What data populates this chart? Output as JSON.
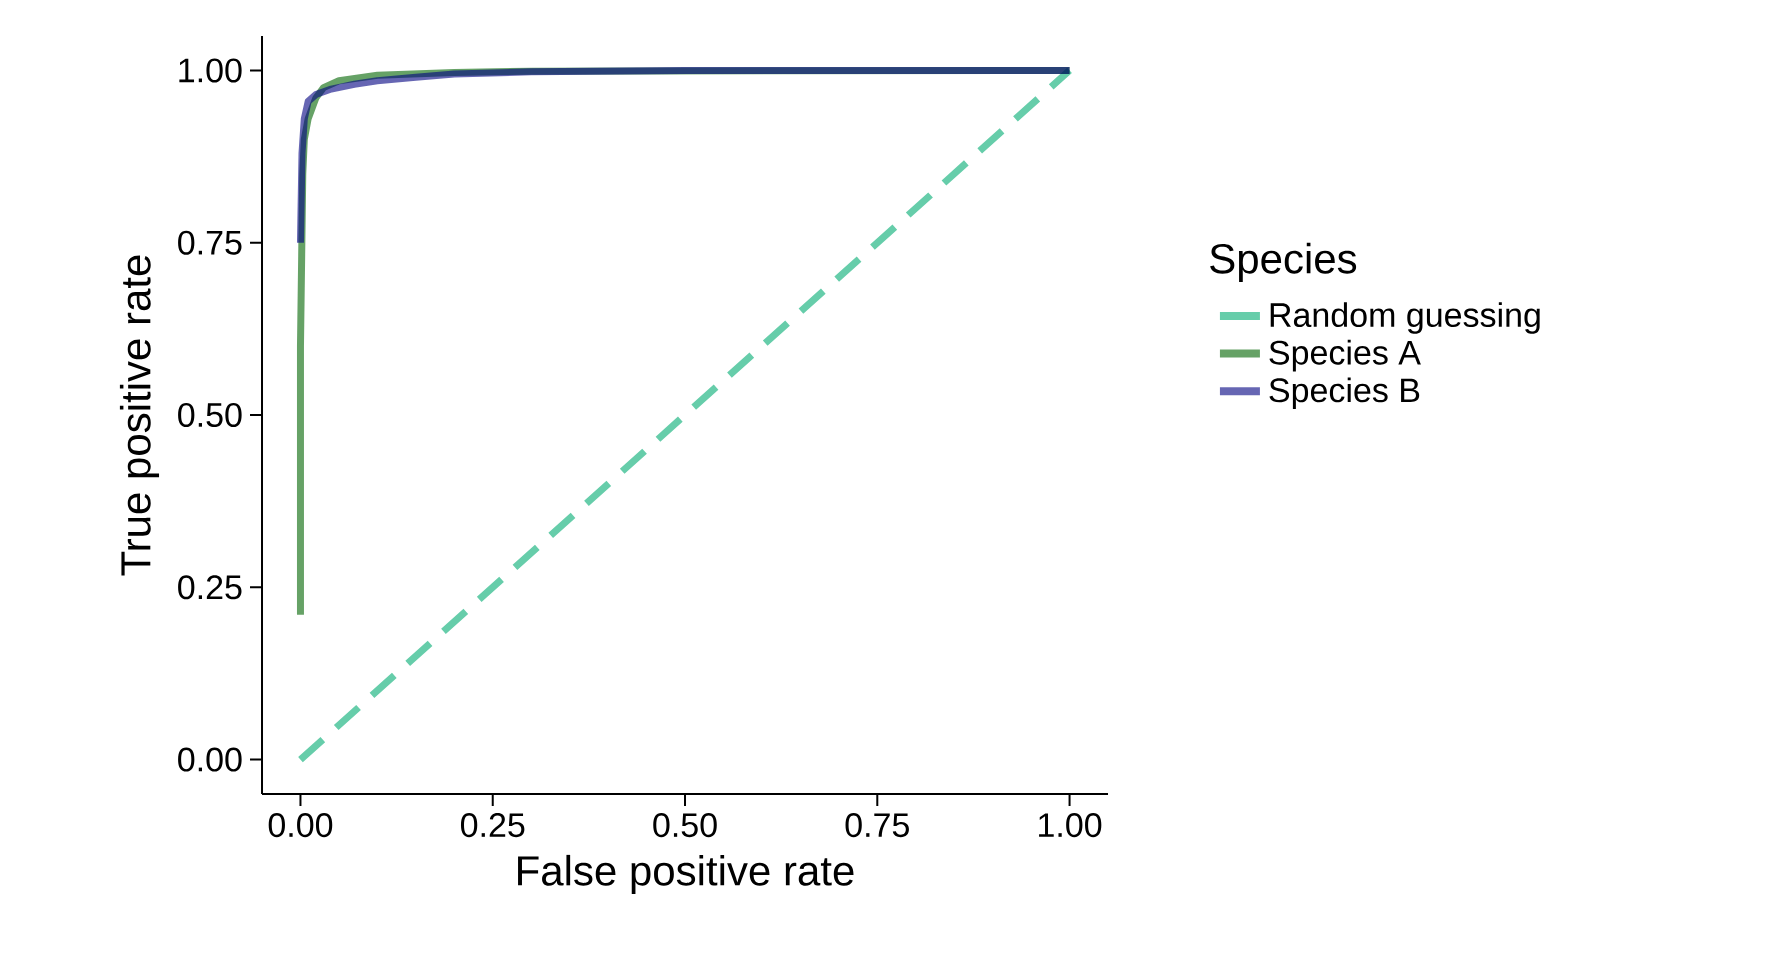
{
  "chart_data": {
    "type": "line",
    "xlabel": "False positive rate",
    "ylabel": "True positive rate",
    "legend_title": "Species",
    "legend": "right",
    "grid": false,
    "xlim": [
      -0.05,
      1.05
    ],
    "ylim": [
      -0.05,
      1.05
    ],
    "xticks": [
      {
        "value": 0,
        "label": "0.00"
      },
      {
        "value": 0.25,
        "label": "0.25"
      },
      {
        "value": 0.5,
        "label": "0.50"
      },
      {
        "value": 0.75,
        "label": "0.75"
      },
      {
        "value": 1,
        "label": "1.00"
      }
    ],
    "yticks": [
      {
        "value": 0,
        "label": "0.00"
      },
      {
        "value": 0.25,
        "label": "0.25"
      },
      {
        "value": 0.5,
        "label": "0.50"
      },
      {
        "value": 0.75,
        "label": "0.75"
      },
      {
        "value": 1,
        "label": "1.00"
      }
    ],
    "series": [
      {
        "name": "Random guessing",
        "color": "#66cdaa",
        "line_style": "dashed",
        "x": [
          0,
          1
        ],
        "values": [
          0,
          1
        ]
      },
      {
        "name": "Species A",
        "color": "#006400",
        "line_style": "solid",
        "x": [
          0,
          0,
          0.003,
          0.005,
          0.01,
          0.02,
          0.03,
          0.05,
          0.1,
          0.2,
          0.3,
          1
        ],
        "values": [
          0.21,
          0.6,
          0.85,
          0.9,
          0.93,
          0.96,
          0.975,
          0.985,
          0.993,
          0.997,
          0.999,
          1
        ]
      },
      {
        "name": "Species B",
        "color": "#000080",
        "line_style": "solid",
        "x": [
          0,
          0.002,
          0.005,
          0.01,
          0.02,
          0.04,
          0.07,
          0.1,
          0.15,
          0.2,
          0.3,
          0.5,
          1
        ],
        "values": [
          0.75,
          0.88,
          0.93,
          0.955,
          0.965,
          0.973,
          0.98,
          0.985,
          0.99,
          0.995,
          0.998,
          1,
          1
        ]
      }
    ]
  }
}
